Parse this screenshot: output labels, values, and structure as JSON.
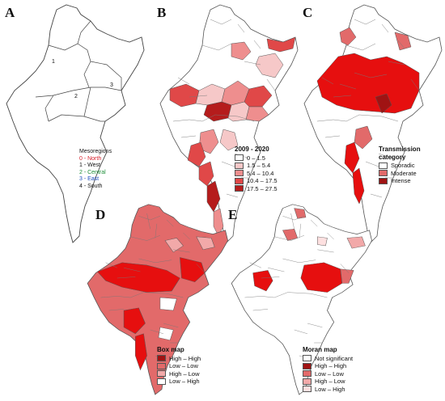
{
  "panels": {
    "A": {
      "label": "A"
    },
    "B": {
      "label": "B"
    },
    "C": {
      "label": "C"
    },
    "D": {
      "label": "D"
    },
    "E": {
      "label": "E"
    }
  },
  "mesoregions": {
    "title": "Mesoregions",
    "numbers": [
      "1",
      "2",
      "3"
    ],
    "items": [
      {
        "label": "0 - North",
        "color": "#d61f2b"
      },
      {
        "label": "1 - West",
        "color": "#111111"
      },
      {
        "label": "2 - Central",
        "color": "#1f8f3a"
      },
      {
        "label": "3 - East",
        "color": "#1f4fbf"
      },
      {
        "label": "4 - South",
        "color": "#111111"
      }
    ]
  },
  "legend_b": {
    "title": "2009 - 2020",
    "items": [
      {
        "label": "0 – 1.5",
        "color": "#ffffff"
      },
      {
        "label": "1.5 – 5.4",
        "color": "#f6c8c8"
      },
      {
        "label": "5.4 – 10.4",
        "color": "#ee8e8e"
      },
      {
        "label": "10.4 – 17.5",
        "color": "#e04848"
      },
      {
        "label": "17.5 – 27.5",
        "color": "#b51c1c"
      }
    ]
  },
  "legend_c": {
    "title": "Transmission category",
    "items": [
      {
        "label": "Sporadic",
        "color": "#ffffff"
      },
      {
        "label": "Moderate",
        "color": "#e26a6a"
      },
      {
        "label": "Intense",
        "color": "#a01313"
      }
    ]
  },
  "legend_d": {
    "title": "Box map",
    "items": [
      {
        "label": "High  –  High",
        "color": "#a01313"
      },
      {
        "label": "Low  –  Low",
        "color": "#e26a6a"
      },
      {
        "label": "High  –  Low",
        "color": "#f2a9a9"
      },
      {
        "label": "Low  –  High",
        "color": "#ffffff"
      }
    ]
  },
  "legend_e": {
    "title": "Moran map",
    "items": [
      {
        "label": "Not significant",
        "color": "#ffffff"
      },
      {
        "label": "High  –  High",
        "color": "#a01313"
      },
      {
        "label": "Low  –  Low",
        "color": "#e26a6a"
      },
      {
        "label": "High  –  Low",
        "color": "#f2a9a9"
      },
      {
        "label": "Low  –  High",
        "color": "#fde0e0"
      }
    ]
  },
  "map_colors": {
    "outline": "#555555",
    "fill_light": "#f6c8c8",
    "fill_mid": "#ee8e8e",
    "fill_red": "#e04848",
    "fill_dark": "#b51c1c"
  }
}
